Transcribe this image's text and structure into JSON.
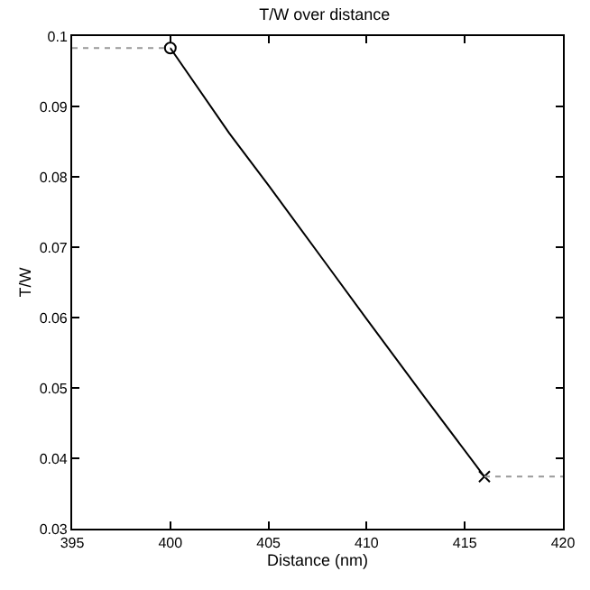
{
  "chart_data": {
    "type": "line",
    "title": "T/W over distance",
    "xlabel": "Distance (nm)",
    "ylabel": "T/W",
    "xlim": [
      395,
      420
    ],
    "xticks": [
      395,
      400,
      405,
      410,
      415,
      420
    ],
    "ylim": [
      0.03,
      0.1
    ],
    "yticks": [
      0.03,
      0.04,
      0.05,
      0.06,
      0.07,
      0.08,
      0.09,
      0.1
    ],
    "series": [
      {
        "color": "#000000",
        "line_style": "solid",
        "marker": "none",
        "x": [
          400,
          403,
          405,
          408,
          410,
          413,
          416
        ],
        "values": [
          0.0983,
          0.0862,
          0.0788,
          0.0674,
          0.0598,
          0.0485,
          0.0374
        ]
      },
      {
        "type": "scatter",
        "color": "#000000",
        "marker": "circle",
        "x": [
          400
        ],
        "values": [
          0.0983
        ]
      },
      {
        "type": "scatter",
        "color": "#000000",
        "marker": "cross",
        "x": [
          416
        ],
        "values": [
          0.0374
        ]
      },
      {
        "color": "#999999",
        "line_style": "dotted",
        "marker": "none",
        "x": [
          395,
          400
        ],
        "values": [
          0.0983,
          0.0983
        ]
      },
      {
        "color": "#999999",
        "line_style": "dotted",
        "marker": "none",
        "x": [
          416,
          420
        ],
        "values": [
          0.0374,
          0.0374
        ]
      }
    ]
  }
}
